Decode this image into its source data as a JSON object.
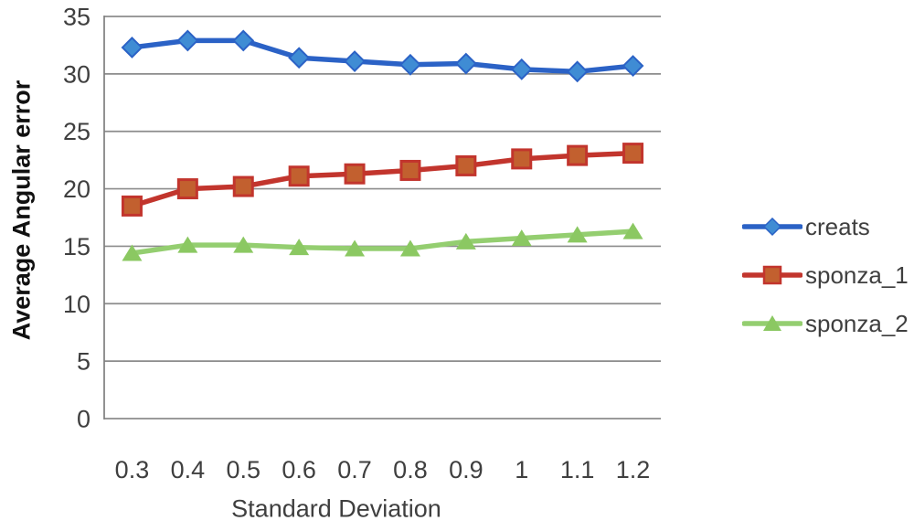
{
  "chart_data": {
    "type": "line",
    "title": "",
    "xlabel": "Standard Deviation",
    "ylabel": "Average Angular error",
    "categories": [
      "0.3",
      "0.4",
      "0.5",
      "0.6",
      "0.7",
      "0.8",
      "0.9",
      "1",
      "1.1",
      "1.2"
    ],
    "series": [
      {
        "name": "creats",
        "marker": "diamond",
        "line_color": "#2b62c6",
        "marker_fill": "#3f8cd4",
        "values": [
          32.3,
          32.9,
          32.9,
          31.4,
          31.1,
          30.8,
          30.9,
          30.4,
          30.2,
          30.7
        ]
      },
      {
        "name": "sponza_1",
        "marker": "square",
        "line_color": "#c2352d",
        "marker_fill": "#c2602f",
        "values": [
          18.5,
          20.0,
          20.2,
          21.1,
          21.3,
          21.6,
          22.0,
          22.6,
          22.9,
          23.1
        ]
      },
      {
        "name": "sponza_2",
        "marker": "triangle-up",
        "line_color": "#94ce70",
        "marker_fill": "#8bc862",
        "values": [
          14.4,
          15.1,
          15.1,
          14.9,
          14.8,
          14.8,
          15.4,
          15.7,
          16.0,
          16.3
        ]
      }
    ],
    "ylim": [
      0,
      35
    ],
    "yticks": [
      0,
      5,
      10,
      15,
      20,
      25,
      30,
      35
    ],
    "grid": "horizontal",
    "legend_position": "right",
    "gridline_color": "#8c8c8c",
    "axis_color": "#7f7f7f",
    "tick_label_color": "#3f3f3f"
  }
}
